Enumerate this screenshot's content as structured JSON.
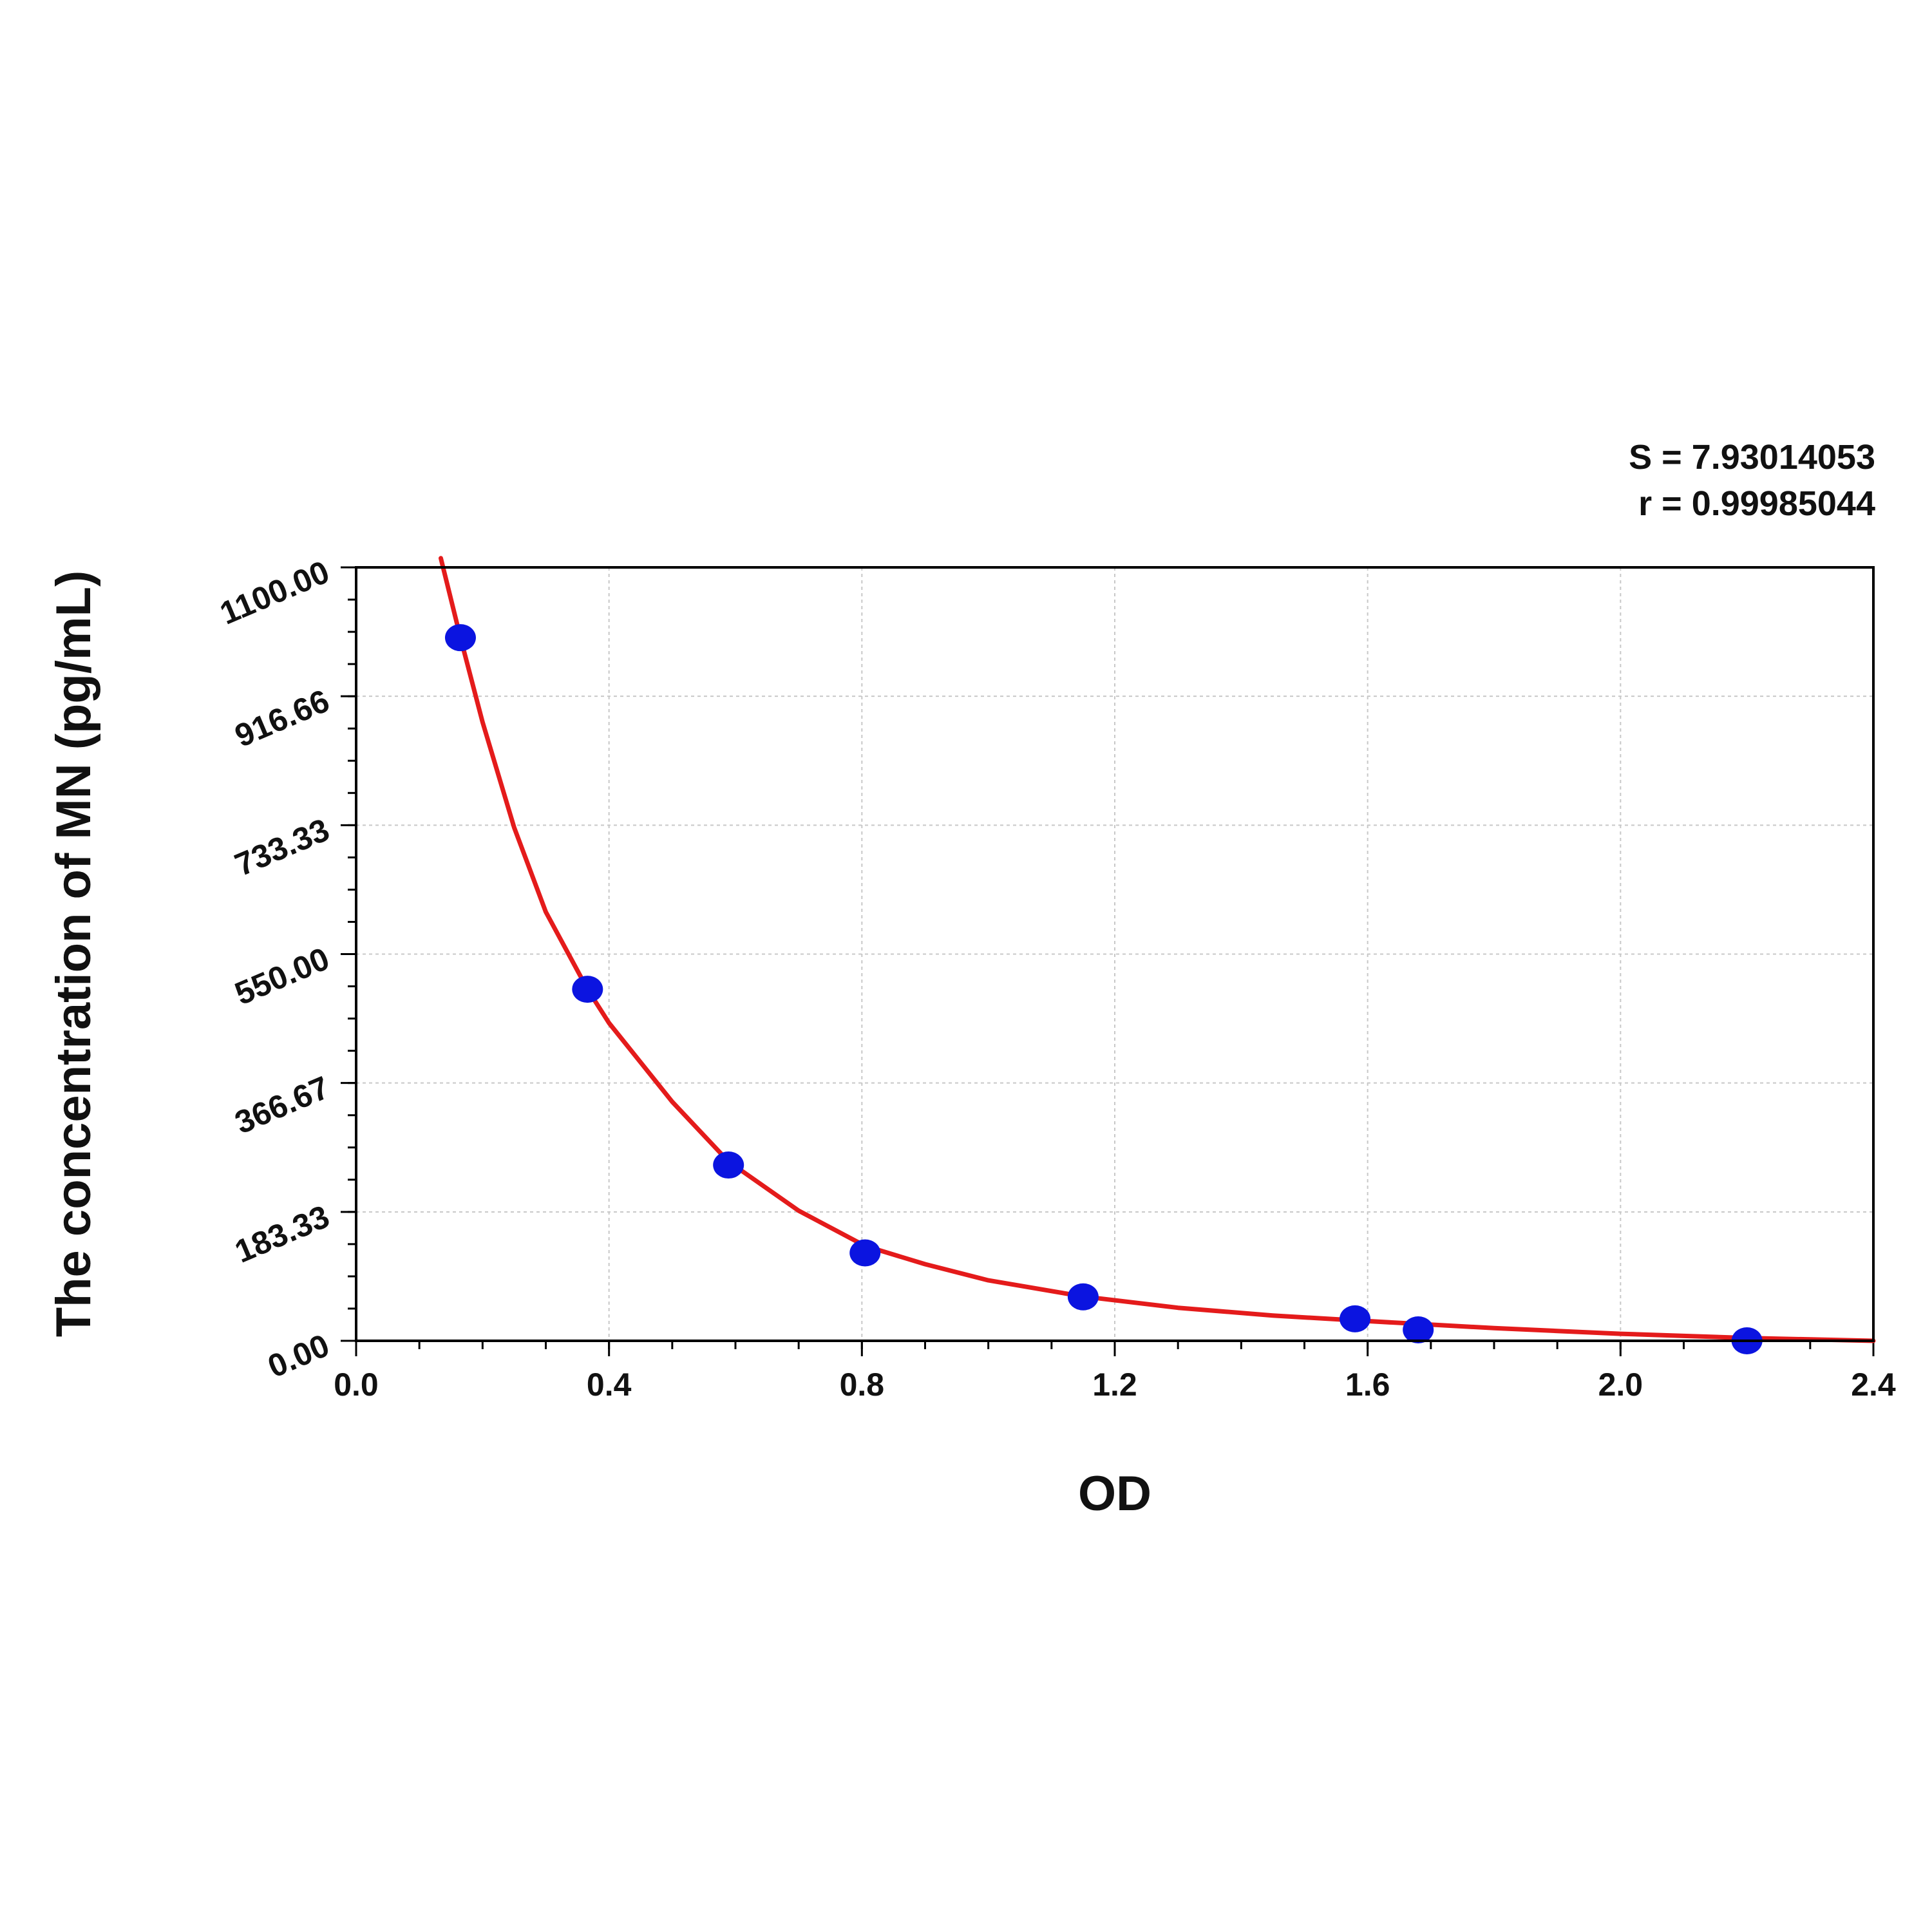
{
  "stats": {
    "s_line": "S = 7.93014053",
    "r_line": "r = 0.99985044"
  },
  "chart_data": {
    "type": "scatter",
    "title": "",
    "xlabel": "OD",
    "ylabel": "The concentration of MN (pg/mL)",
    "xlim": [
      0.0,
      2.4
    ],
    "ylim": [
      0.0,
      1100.0
    ],
    "x_ticks": [
      "0.0",
      "0.4",
      "0.8",
      "1.2",
      "1.6",
      "2.0",
      "2.4"
    ],
    "y_ticks": [
      "0.00",
      "183.33",
      "366.67",
      "550.00",
      "733.33",
      "916.66",
      "1100.00"
    ],
    "grid": true,
    "series": [
      {
        "type": "scatter",
        "x": [
          0.165,
          0.366,
          0.589,
          0.805,
          1.15,
          1.58,
          1.68,
          2.2
        ],
        "y": [
          1000,
          500,
          250,
          125,
          62.5,
          31.25,
          15.6,
          0
        ],
        "color": "#0b14e0"
      },
      {
        "type": "line",
        "x": [
          0.134,
          0.165,
          0.2,
          0.25,
          0.3,
          0.366,
          0.4,
          0.5,
          0.589,
          0.7,
          0.805,
          0.9,
          1.0,
          1.15,
          1.3,
          1.45,
          1.58,
          1.68,
          1.8,
          1.9,
          2.0,
          2.1,
          2.2,
          2.3,
          2.4
        ],
        "y": [
          1113,
          1000,
          880,
          730,
          610,
          500,
          452,
          340,
          255,
          185,
          135,
          109,
          86,
          63,
          47,
          36,
          29,
          24,
          18,
          14,
          10,
          7,
          4,
          2,
          0
        ],
        "color": "#e41b1b"
      }
    ]
  }
}
